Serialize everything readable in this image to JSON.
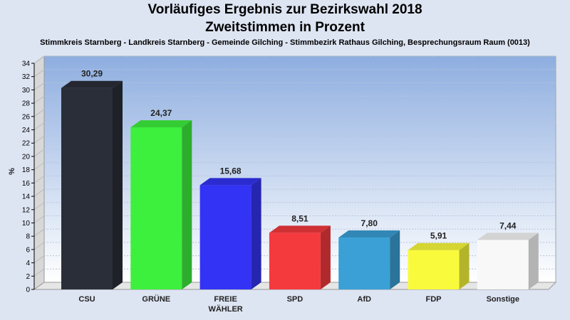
{
  "chart_data": {
    "type": "bar",
    "title": "Vorläufiges Ergebnis zur Bezirkswahl 2018",
    "subtitle": "Zweitstimmen in Prozent",
    "caption": "Stimmkreis Starnberg - Landkreis Starnberg - Gemeinde Gilching - Stimmbezirk Rathaus Gilching, Besprechungsraum Raum  (0013)",
    "ylabel": "%",
    "xlabel": "",
    "ylim": [
      0,
      34
    ],
    "ytick_step": 2,
    "grid": true,
    "categories": [
      "CSU",
      "GRÜNE",
      "FREIE WÄHLER",
      "SPD",
      "AfD",
      "FDP",
      "Sonstige"
    ],
    "category_lines": [
      [
        "CSU"
      ],
      [
        "GRÜNE"
      ],
      [
        "FREIE",
        "WÄHLER"
      ],
      [
        "SPD"
      ],
      [
        "AfD"
      ],
      [
        "FDP"
      ],
      [
        "Sonstige"
      ]
    ],
    "values": [
      30.29,
      24.37,
      15.68,
      8.51,
      7.8,
      5.91,
      7.44
    ],
    "value_labels": [
      "30,29",
      "24,37",
      "15,68",
      "8,51",
      "7,80",
      "5,91",
      "7,44"
    ],
    "colors": [
      "#2a2e38",
      "#3df03d",
      "#3333f5",
      "#f53a3e",
      "#3aa0d6",
      "#fafa3c",
      "#f8f8f8"
    ]
  }
}
